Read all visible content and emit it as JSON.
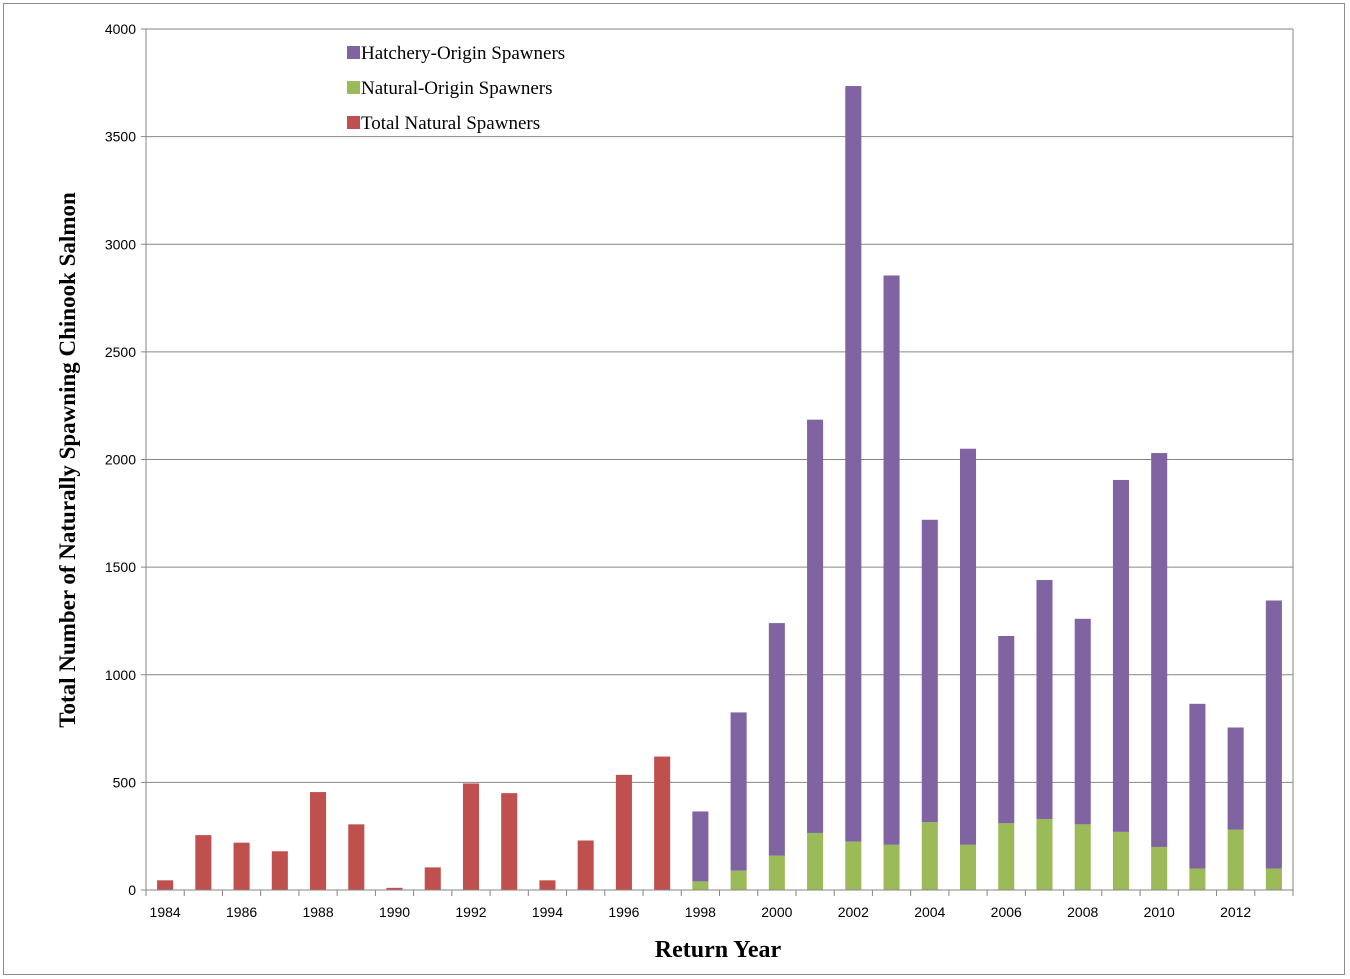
{
  "chart_data": {
    "type": "bar",
    "stacked": true,
    "xlabel": "Return Year",
    "ylabel": "Total Number of Naturally Spawning Chinook Salmon",
    "ylim": [
      0,
      4000
    ],
    "yticks": [
      0,
      500,
      1000,
      1500,
      2000,
      2500,
      3000,
      3500,
      4000
    ],
    "grid": "horizontal",
    "legend_position": "top-left",
    "categories": [
      1984,
      1985,
      1986,
      1987,
      1988,
      1989,
      1990,
      1991,
      1992,
      1993,
      1994,
      1995,
      1996,
      1997,
      1998,
      1999,
      2000,
      2001,
      2002,
      2003,
      2004,
      2005,
      2006,
      2007,
      2008,
      2009,
      2010,
      2011,
      2012,
      2013
    ],
    "xtick_labels": [
      "1984",
      "",
      "1986",
      "",
      "1988",
      "",
      "1990",
      "",
      "1992",
      "",
      "1994",
      "",
      "1996",
      "",
      "1998",
      "",
      "2000",
      "",
      "2002",
      "",
      "2004",
      "",
      "2006",
      "",
      "2008",
      "",
      "2010",
      "",
      "2012",
      ""
    ],
    "series": [
      {
        "name": "Total Natural Spawners",
        "color": "#c0504d",
        "values": [
          45,
          255,
          220,
          180,
          455,
          305,
          10,
          105,
          495,
          450,
          45,
          230,
          535,
          620,
          null,
          null,
          null,
          null,
          null,
          null,
          null,
          null,
          null,
          null,
          null,
          null,
          null,
          null,
          null,
          null
        ]
      },
      {
        "name": "Natural-Origin Spawners",
        "color": "#9bbb59",
        "values": [
          null,
          null,
          null,
          null,
          null,
          null,
          null,
          null,
          null,
          null,
          null,
          null,
          null,
          null,
          40,
          90,
          160,
          265,
          225,
          210,
          315,
          210,
          310,
          330,
          305,
          270,
          200,
          100,
          280,
          100
        ]
      },
      {
        "name": "Hatchery-Origin Spawners",
        "color": "#8064a2",
        "values": [
          null,
          null,
          null,
          null,
          null,
          null,
          null,
          null,
          null,
          null,
          null,
          null,
          null,
          null,
          325,
          735,
          1080,
          1920,
          3510,
          2645,
          1405,
          1840,
          870,
          1110,
          955,
          1635,
          1830,
          765,
          475,
          1245
        ]
      }
    ],
    "legend_order": [
      "Hatchery-Origin Spawners",
      "Natural-Origin Spawners",
      "Total Natural Spawners"
    ]
  }
}
